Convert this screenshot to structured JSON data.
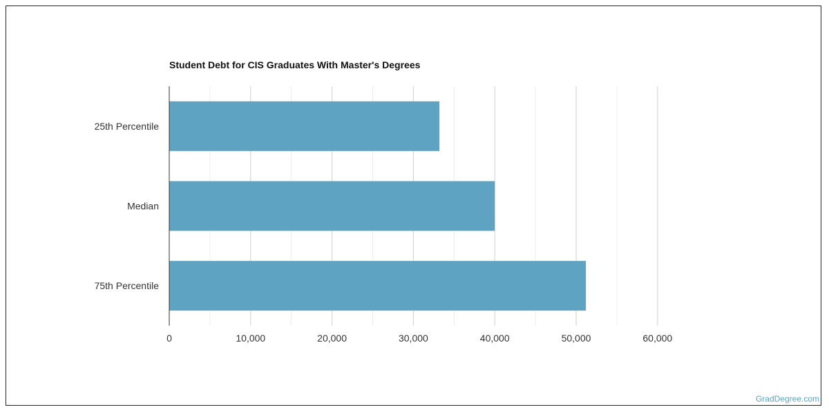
{
  "chart_data": {
    "type": "bar",
    "orientation": "horizontal",
    "title": "Student Debt for CIS Graduates With Master's Degrees",
    "categories": [
      "25th Percentile",
      "Median",
      "75th Percentile"
    ],
    "values": [
      33200,
      40000,
      51200
    ],
    "xlim": [
      0,
      62000
    ],
    "xticks": [
      0,
      10000,
      20000,
      30000,
      40000,
      50000,
      60000
    ],
    "xtick_labels": [
      "0",
      "10,000",
      "20,000",
      "30,000",
      "40,000",
      "50,000",
      "60,000"
    ],
    "grid": true,
    "bar_color": "#5ea3c1"
  },
  "watermark": "GradDegree.com"
}
